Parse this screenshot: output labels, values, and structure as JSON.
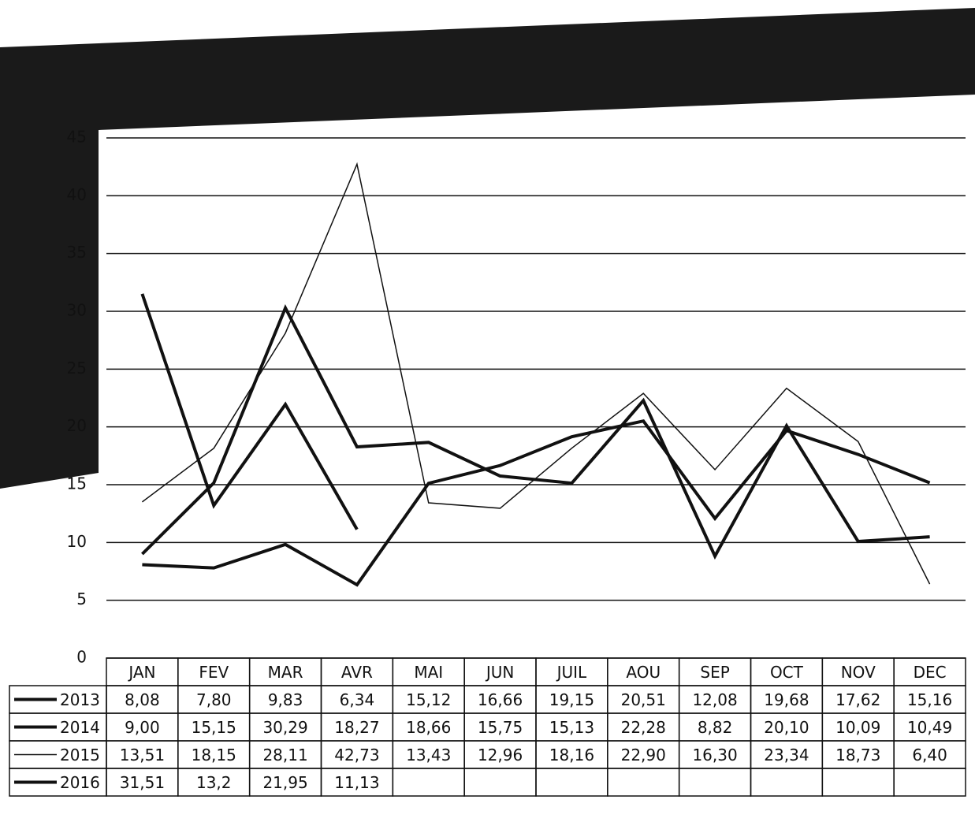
{
  "chart_data": {
    "type": "line",
    "categories": [
      "JAN",
      "FEV",
      "MAR",
      "AVR",
      "MAI",
      "JUN",
      "JUIL",
      "AOU",
      "SEP",
      "OCT",
      "NOV",
      "DEC"
    ],
    "series": [
      {
        "name": "2013",
        "color": "#111111",
        "width": 4,
        "values": [
          8.08,
          7.8,
          9.83,
          6.34,
          15.12,
          16.66,
          19.15,
          20.51,
          12.08,
          19.68,
          17.62,
          15.16
        ],
        "value_labels": [
          "8,08",
          "7,80",
          "9,83",
          "6,34",
          "15,12",
          "16,66",
          "19,15",
          "20,51",
          "12,08",
          "19,68",
          "17,62",
          "15,16"
        ]
      },
      {
        "name": "2014",
        "color": "#111111",
        "width": 4,
        "values": [
          9.0,
          15.15,
          30.29,
          18.27,
          18.66,
          15.75,
          15.13,
          22.28,
          8.82,
          20.1,
          10.09,
          10.49
        ],
        "value_labels": [
          "9,00",
          "15,15",
          "30,29",
          "18,27",
          "18,66",
          "15,75",
          "15,13",
          "22,28",
          "8,82",
          "20,10",
          "10,09",
          "10,49"
        ]
      },
      {
        "name": "2015",
        "color": "#111111",
        "width": 1.5,
        "values": [
          13.51,
          18.15,
          28.11,
          42.73,
          13.43,
          12.96,
          18.16,
          22.9,
          16.3,
          23.34,
          18.73,
          6.4
        ],
        "value_labels": [
          "13,51",
          "18,15",
          "28,11",
          "42,73",
          "13,43",
          "12,96",
          "18,16",
          "22,90",
          "16,30",
          "23,34",
          "18,73",
          "6,40"
        ]
      },
      {
        "name": "2016",
        "color": "#111111",
        "width": 4,
        "values": [
          31.51,
          13.2,
          21.95,
          11.13,
          null,
          null,
          null,
          null,
          null,
          null,
          null,
          null
        ],
        "value_labels": [
          "31,51",
          "13,2",
          "21,95",
          "11,13",
          null,
          null,
          null,
          null,
          null,
          null,
          null,
          null
        ]
      }
    ],
    "ylim": [
      0,
      45
    ],
    "yticks": [
      0,
      5,
      10,
      15,
      20,
      25,
      30,
      35,
      40,
      45
    ],
    "grid": true
  }
}
